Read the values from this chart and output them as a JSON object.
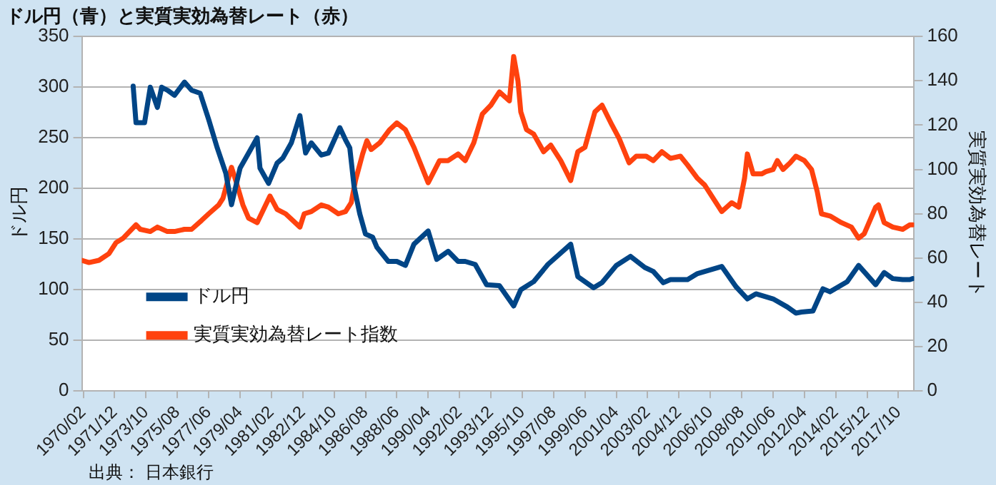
{
  "chart_data": {
    "type": "line",
    "title": "ドル円（青）と実質実効為替レート（赤）",
    "ylabel": "ドル円",
    "y2label": "実質実効為替レート",
    "annotations": [
      "出典： 日本銀行"
    ],
    "xlim": [
      "1970-01",
      "2018-09"
    ],
    "xticks": [
      {
        "value": "1970-02",
        "label": "1970/02"
      },
      {
        "value": "1971-12",
        "label": "1971/12"
      },
      {
        "value": "1973-10",
        "label": "1973/10"
      },
      {
        "value": "1975-08",
        "label": "1975/08"
      },
      {
        "value": "1977-06",
        "label": "1977/06"
      },
      {
        "value": "1979-04",
        "label": "1979/04"
      },
      {
        "value": "1981-02",
        "label": "1981/02"
      },
      {
        "value": "1982-12",
        "label": "1982/12"
      },
      {
        "value": "1984-10",
        "label": "1984/10"
      },
      {
        "value": "1986-08",
        "label": "1986/08"
      },
      {
        "value": "1988-06",
        "label": "1988/06"
      },
      {
        "value": "1990-04",
        "label": "1990/04"
      },
      {
        "value": "1992-02",
        "label": "1992/02"
      },
      {
        "value": "1993-12",
        "label": "1993/12"
      },
      {
        "value": "1995-10",
        "label": "1995/10"
      },
      {
        "value": "1997-08",
        "label": "1997/08"
      },
      {
        "value": "1999-06",
        "label": "1999/06"
      },
      {
        "value": "2001-04",
        "label": "2001/04"
      },
      {
        "value": "2003-02",
        "label": "2003/02"
      },
      {
        "value": "2004-12",
        "label": "2004/12"
      },
      {
        "value": "2006-10",
        "label": "2006/10"
      },
      {
        "value": "2008-08",
        "label": "2008/08"
      },
      {
        "value": "2010-06",
        "label": "2010/06"
      },
      {
        "value": "2012-04",
        "label": "2012/04"
      },
      {
        "value": "2014-02",
        "label": "2014/02"
      },
      {
        "value": "2015-12",
        "label": "2015/12"
      },
      {
        "value": "2017-10",
        "label": "2017/10"
      }
    ],
    "ylim": [
      0,
      350
    ],
    "yticks": [
      0,
      50,
      100,
      150,
      200,
      250,
      300,
      350
    ],
    "y2lim": [
      0,
      160
    ],
    "y2ticks": [
      0,
      20,
      40,
      60,
      80,
      100,
      120,
      140,
      160
    ],
    "grid": "y",
    "legend": "bottom left",
    "series": [
      {
        "name": "ドル円",
        "color": "#004586",
        "x": [
          "1973-01",
          "1973-03",
          "1973-09",
          "1974-01",
          "1974-06",
          "1974-09",
          "1975-01",
          "1975-06",
          "1976-01",
          "1976-06",
          "1976-12",
          "1977-06",
          "1977-12",
          "1978-06",
          "1978-10",
          "1979-04",
          "1979-12",
          "1980-04",
          "1980-06",
          "1980-12",
          "1981-06",
          "1981-10",
          "1982-04",
          "1982-10",
          "1983-02",
          "1983-06",
          "1984-01",
          "1984-06",
          "1985-02",
          "1985-06",
          "1985-09",
          "1985-12",
          "1986-04",
          "1986-08",
          "1987-01",
          "1987-04",
          "1987-12",
          "1988-06",
          "1988-12",
          "1989-06",
          "1990-04",
          "1990-10",
          "1991-06",
          "1992-01",
          "1992-06",
          "1993-01",
          "1993-09",
          "1994-06",
          "1995-04",
          "1995-09",
          "1996-06",
          "1997-04",
          "1998-08",
          "1999-01",
          "1999-12",
          "2000-06",
          "2001-04",
          "2002-02",
          "2002-12",
          "2003-06",
          "2004-01",
          "2004-06",
          "2005-06",
          "2006-01",
          "2007-06",
          "2008-04",
          "2008-12",
          "2009-06",
          "2010-06",
          "2011-04",
          "2011-10",
          "2012-02",
          "2012-10",
          "2013-05",
          "2013-10",
          "2014-10",
          "2015-06",
          "2016-06",
          "2016-12",
          "2017-06",
          "2018-01",
          "2018-06",
          "2018-08"
        ],
        "values": [
          301,
          265,
          265,
          300,
          280,
          300,
          297,
          292,
          305,
          297,
          294,
          268,
          240,
          215,
          184,
          220,
          240,
          250,
          220,
          205,
          225,
          230,
          245,
          272,
          235,
          245,
          233,
          235,
          260,
          248,
          240,
          202,
          175,
          155,
          152,
          142,
          128,
          128,
          124,
          145,
          158,
          130,
          138,
          128,
          128,
          125,
          105,
          104,
          84,
          100,
          108,
          125,
          145,
          113,
          102,
          107,
          124,
          133,
          122,
          118,
          107,
          110,
          110,
          116,
          123,
          103,
          91,
          96,
          91,
          83,
          77,
          78,
          79,
          101,
          98,
          108,
          124,
          105,
          117,
          111,
          110,
          110,
          111
        ]
      },
      {
        "name": "実質実効為替レート指数",
        "color": "#ff420e",
        "axis": "y2",
        "x": [
          "1970-01",
          "1970-06",
          "1971-01",
          "1971-08",
          "1972-01",
          "1972-06",
          "1973-03",
          "1973-06",
          "1974-01",
          "1974-06",
          "1975-01",
          "1975-06",
          "1976-01",
          "1976-06",
          "1977-01",
          "1977-06",
          "1978-01",
          "1978-04",
          "1978-10",
          "1979-01",
          "1979-06",
          "1979-10",
          "1980-04",
          "1980-10",
          "1981-01",
          "1981-06",
          "1981-12",
          "1982-10",
          "1983-01",
          "1983-06",
          "1984-01",
          "1984-06",
          "1985-01",
          "1985-06",
          "1985-10",
          "1986-01",
          "1986-06",
          "1986-09",
          "1986-12",
          "1987-06",
          "1988-01",
          "1988-06",
          "1988-12",
          "1989-06",
          "1990-04",
          "1990-12",
          "1991-06",
          "1992-01",
          "1992-06",
          "1992-12",
          "1993-06",
          "1993-12",
          "1994-06",
          "1995-01",
          "1995-04",
          "1995-07",
          "1995-09",
          "1996-01",
          "1996-06",
          "1997-01",
          "1997-06",
          "1998-01",
          "1998-08",
          "1999-01",
          "1999-06",
          "2000-01",
          "2000-06",
          "2001-01",
          "2001-06",
          "2002-01",
          "2002-06",
          "2003-01",
          "2003-06",
          "2003-12",
          "2004-06",
          "2005-01",
          "2005-06",
          "2006-01",
          "2006-06",
          "2007-01",
          "2007-06",
          "2008-01",
          "2008-06",
          "2008-10",
          "2008-12",
          "2009-04",
          "2009-10",
          "2010-01",
          "2010-06",
          "2010-09",
          "2011-01",
          "2011-06",
          "2011-10",
          "2012-04",
          "2012-09",
          "2013-01",
          "2013-04",
          "2013-10",
          "2014-06",
          "2015-01",
          "2015-06",
          "2015-10",
          "2016-06",
          "2016-08",
          "2016-12",
          "2017-06",
          "2018-01",
          "2018-06",
          "2018-08"
        ],
        "values": [
          59,
          58,
          59,
          62,
          67,
          69,
          75,
          73,
          72,
          74,
          72,
          72,
          73,
          73,
          77,
          80,
          84,
          87,
          101,
          95,
          84,
          78,
          76,
          84,
          88,
          82,
          80,
          74,
          80,
          81,
          84,
          83,
          80,
          81,
          85,
          95,
          107,
          113,
          109,
          112,
          118,
          121,
          118,
          110,
          94,
          104,
          104,
          107,
          104,
          112,
          125,
          129,
          135,
          131,
          151,
          140,
          126,
          118,
          116,
          108,
          111,
          104,
          95,
          108,
          110,
          126,
          129,
          120,
          114,
          103,
          106,
          106,
          104,
          108,
          105,
          106,
          102,
          96,
          93,
          86,
          81,
          85,
          83,
          96,
          107,
          98,
          98,
          99,
          100,
          104,
          100,
          103,
          106,
          104,
          100,
          90,
          80,
          79,
          76,
          74,
          69,
          71,
          83,
          84,
          76,
          74,
          73,
          75,
          75
        ]
      }
    ]
  }
}
